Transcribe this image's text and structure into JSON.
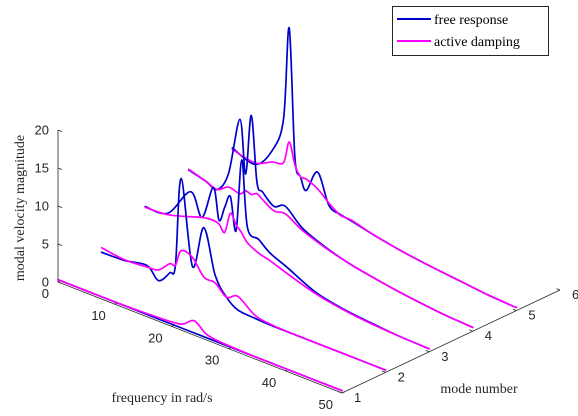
{
  "chart_data": {
    "type": "line",
    "subtype": "3d-waterfall",
    "title": "",
    "xlabel": "frequency in rad/s",
    "ylabel": "mode number",
    "zlabel": "modal velocity magnitude",
    "xlim": [
      0,
      50
    ],
    "ylim": [
      1,
      6
    ],
    "zlim": [
      0,
      20
    ],
    "x_ticks": [
      0,
      10,
      20,
      30,
      40,
      50
    ],
    "y_ticks": [
      1,
      2,
      3,
      4,
      5,
      6
    ],
    "z_ticks": [
      0,
      5,
      10,
      15,
      20
    ],
    "grid": false,
    "legend_position": "top-right",
    "colors": {
      "free_response": "#0000CC",
      "active_damping": "#FF00FF",
      "axis": "#262626"
    },
    "modes": [
      1,
      2,
      3,
      4,
      5
    ],
    "series": [
      {
        "name": "free response",
        "profiles": [
          {
            "mode": 1,
            "x": [
              0,
              5,
              10,
              15,
              20,
              24,
              26,
              30,
              35,
              40,
              45,
              50
            ],
            "z": [
              0.3,
              0.3,
              0.3,
              0.3,
              0.3,
              0.3,
              0.3,
              0.3,
              0.3,
              0.3,
              0.3,
              0.3
            ]
          },
          {
            "mode": 2,
            "x": [
              0,
              4,
              8,
              10,
              12,
              13,
              14,
              16,
              18,
              20,
              22,
              24,
              27,
              30,
              35,
              40,
              45,
              50
            ],
            "z": [
              1.2,
              1.3,
              1.8,
              0.4,
              2.0,
              3.3,
              15.0,
              4.0,
              9.7,
              4.0,
              1.7,
              0.6,
              0.4,
              0.3,
              0.3,
              0.3,
              0.3,
              0.3
            ]
          },
          {
            "mode": 3,
            "x": [
              0,
              4,
              8,
              10,
              12,
              13,
              14,
              15,
              16,
              17,
              18,
              20,
              22,
              25,
              30,
              35,
              40,
              45,
              50
            ],
            "z": [
              4.5,
              4.8,
              8.8,
              6.0,
              10.5,
              6.5,
              8.5,
              10.2,
              6.0,
              15.6,
              7.0,
              6.0,
              4.8,
              3.8,
              2.0,
              1.2,
              0.8,
              0.5,
              0.4
            ]
          },
          {
            "mode": 4,
            "x": [
              0,
              3,
              5,
              7,
              9,
              10,
              11,
              12,
              13,
              15,
              17,
              20,
              24,
              28,
              32,
              36,
              40,
              45,
              50
            ],
            "z": [
              6.6,
              6.0,
              5.5,
              8.2,
              15.9,
              9.0,
              17.0,
              8.5,
              7.5,
              6.2,
              6.8,
              4.8,
              3.5,
              2.6,
              2.0,
              1.5,
              1.1,
              0.7,
              0.5
            ]
          },
          {
            "mode": 5,
            "x": [
              0,
              4,
              7,
              9,
              10,
              11,
              12,
              13,
              15,
              17,
              19,
              21,
              25,
              30,
              35,
              40,
              45,
              50
            ],
            "z": [
              6.8,
              5.8,
              8.5,
              13.2,
              25.5,
              8.8,
              6.5,
              5.0,
              8.0,
              4.2,
              3.6,
              3.3,
              2.6,
              1.9,
              1.4,
              1.0,
              0.6,
              0.4
            ]
          }
        ]
      },
      {
        "name": "active damping",
        "profiles": [
          {
            "mode": 1,
            "x": [
              0,
              5,
              10,
              15,
              20,
              22,
              24,
              26,
              28,
              30,
              35,
              40,
              45,
              50
            ],
            "z": [
              0.3,
              0.3,
              0.3,
              0.4,
              0.6,
              0.9,
              1.9,
              0.8,
              0.5,
              0.4,
              0.3,
              0.3,
              0.3,
              0.3
            ]
          },
          {
            "mode": 2,
            "x": [
              0,
              4,
              8,
              10,
              12,
              13,
              14,
              16,
              18,
              20,
              22,
              24,
              27,
              30,
              35,
              40,
              45,
              50
            ],
            "z": [
              1.8,
              1.4,
              1.6,
              1.8,
              3.2,
              3.3,
              5.5,
              5.2,
              3.2,
              3.0,
              1.7,
              2.4,
              0.8,
              0.4,
              0.3,
              0.3,
              0.3,
              0.3
            ]
          },
          {
            "mode": 3,
            "x": [
              0,
              4,
              8,
              10,
              12,
              13,
              14,
              15,
              16,
              17,
              18,
              20,
              22,
              25,
              30,
              35,
              40,
              45,
              50
            ],
            "z": [
              4.4,
              4.6,
              5.5,
              6.0,
              6.2,
              6.0,
              5.2,
              8.0,
              6.8,
              6.0,
              5.0,
              4.2,
              3.8,
              3.0,
              1.8,
              1.1,
              0.7,
              0.5,
              0.4
            ]
          },
          {
            "mode": 4,
            "x": [
              0,
              3,
              5,
              7,
              9,
              10,
              11,
              12,
              13,
              15,
              17,
              20,
              24,
              28,
              32,
              36,
              40,
              45,
              50
            ],
            "z": [
              6.7,
              6.0,
              5.5,
              6.4,
              6.1,
              6.8,
              6.6,
              7.0,
              6.5,
              5.6,
              5.8,
              4.5,
              3.4,
              2.6,
              2.0,
              1.5,
              1.1,
              0.7,
              0.5
            ]
          },
          {
            "mode": 5,
            "x": [
              0,
              4,
              7,
              9,
              10,
              11,
              12,
              13,
              15,
              17,
              19,
              21,
              25,
              30,
              35,
              40,
              45,
              50
            ],
            "z": [
              6.6,
              6.0,
              7.0,
              7.5,
              10.5,
              7.8,
              6.5,
              6.5,
              5.8,
              4.5,
              3.5,
              3.4,
              2.6,
              1.9,
              1.4,
              1.0,
              0.6,
              0.4
            ]
          }
        ]
      }
    ]
  }
}
